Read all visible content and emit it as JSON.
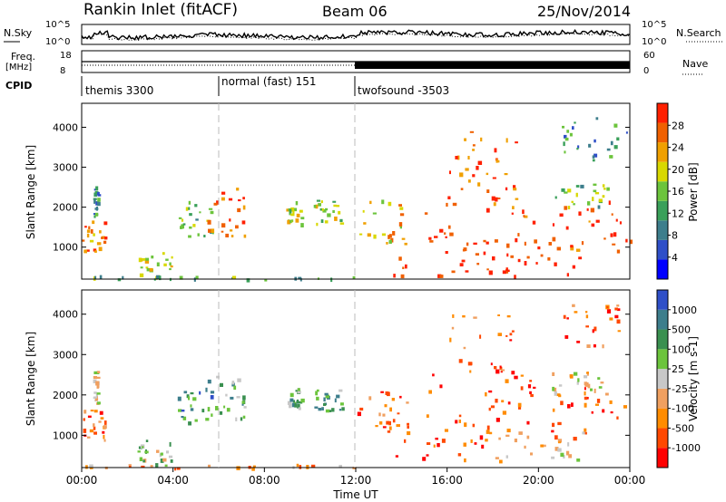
{
  "header": {
    "station": "Rankin Inlet (fitACF)",
    "beam": "Beam 06",
    "date": "25/Nov/2014"
  },
  "top_panels": {
    "nsky_label": "N.Sky",
    "nsky_ticks": [
      "10^5",
      "10^0"
    ],
    "nsearch_label": "N.Search",
    "nsearch_ticks": [
      "10^5",
      "10^0"
    ],
    "freq_label": "Freq.",
    "freq_unit": "[MHz]",
    "freq_ticks": [
      "18",
      "8"
    ],
    "nave_label": "Nave",
    "nave_ticks": [
      "60",
      "0"
    ],
    "cpid_label": "CPID",
    "cpid_segments": [
      {
        "label": "themis 3300",
        "start_h": 0,
        "end_h": 6
      },
      {
        "label": "normal (fast) 151",
        "start_h": 6,
        "end_h": 12
      },
      {
        "label": "twofsound -3503",
        "start_h": 12,
        "end_h": 24
      }
    ]
  },
  "chart_data": [
    {
      "type": "heatmap",
      "name": "power",
      "ylabel": "Slant Range [km]",
      "yticks": [
        1000,
        2000,
        3000,
        4000
      ],
      "ylim": [
        200,
        4600
      ],
      "xlim": [
        0,
        24
      ],
      "colorbar": {
        "label": "Power [dB]",
        "ticks": [
          "28",
          "24",
          "20",
          "16",
          "12",
          "8",
          "4"
        ],
        "colors": [
          "#0000ff",
          "#2f4fc8",
          "#3d7e8c",
          "#3aa05a",
          "#6cc43c",
          "#d8d800",
          "#f0a000",
          "#f06000",
          "#ff2000"
        ]
      },
      "regions": [
        {
          "x0": 0.0,
          "x1": 1.0,
          "y0": 900,
          "y1": 1700,
          "level": 0.8
        },
        {
          "x0": 0.5,
          "x1": 0.7,
          "y0": 1800,
          "y1": 2600,
          "level": 0.3
        },
        {
          "x0": 2.4,
          "x1": 4.0,
          "y0": 250,
          "y1": 900,
          "level": 0.6
        },
        {
          "x0": 4.2,
          "x1": 5.8,
          "y0": 1300,
          "y1": 2200,
          "level": 0.5
        },
        {
          "x0": 5.5,
          "x1": 7.1,
          "y0": 1300,
          "y1": 2500,
          "level": 0.85
        },
        {
          "x0": 8.9,
          "x1": 9.6,
          "y0": 1600,
          "y1": 2200,
          "level": 0.6
        },
        {
          "x0": 10.1,
          "x1": 11.4,
          "y0": 1600,
          "y1": 2200,
          "level": 0.55
        },
        {
          "x0": 12.0,
          "x1": 14.2,
          "y0": 1100,
          "y1": 2200,
          "level": 0.7
        },
        {
          "x0": 13.5,
          "x1": 18.0,
          "y0": 300,
          "y1": 1400,
          "level": 0.95
        },
        {
          "x0": 15.0,
          "x1": 20.0,
          "y0": 1200,
          "y1": 2600,
          "level": 0.9
        },
        {
          "x0": 16.0,
          "x1": 19.0,
          "y0": 2600,
          "y1": 4000,
          "level": 0.85
        },
        {
          "x0": 18.0,
          "x1": 22.0,
          "y0": 300,
          "y1": 1200,
          "level": 0.95
        },
        {
          "x0": 20.5,
          "x1": 24.0,
          "y0": 900,
          "y1": 2200,
          "level": 0.9
        },
        {
          "x0": 20.5,
          "x1": 23.0,
          "y0": 2000,
          "y1": 2600,
          "level": 0.5
        },
        {
          "x0": 21.0,
          "x1": 24.0,
          "y0": 3200,
          "y1": 4300,
          "level": 0.35
        },
        {
          "x0": 0.0,
          "x1": 12.0,
          "y0": 200,
          "y1": 300,
          "level": 0.4
        }
      ]
    },
    {
      "type": "heatmap",
      "name": "velocity",
      "ylabel": "Slant Range [km]",
      "yticks": [
        1000,
        2000,
        3000,
        4000
      ],
      "ylim": [
        200,
        4600
      ],
      "xlim": [
        0,
        24
      ],
      "colorbar": {
        "label": "Velocity [m s-1]",
        "ticks": [
          "1000",
          "500",
          "100",
          "25",
          "-25",
          "-100",
          "-500",
          "-1000"
        ],
        "colors": [
          "#ff0000",
          "#ff4800",
          "#ff8c00",
          "#f0a060",
          "#c8c8c8",
          "#6cc43c",
          "#3a9050",
          "#3d7e8c",
          "#2f4fc8"
        ]
      },
      "regions": [
        {
          "x0": 0.0,
          "x1": 1.0,
          "y0": 900,
          "y1": 1700,
          "level": 0.25
        },
        {
          "x0": 0.5,
          "x1": 0.7,
          "y0": 1800,
          "y1": 2600,
          "level": 0.5
        },
        {
          "x0": 2.4,
          "x1": 4.0,
          "y0": 250,
          "y1": 900,
          "level": 0.6
        },
        {
          "x0": 4.2,
          "x1": 5.8,
          "y0": 1300,
          "y1": 2200,
          "level": 0.75
        },
        {
          "x0": 5.5,
          "x1": 7.1,
          "y0": 1300,
          "y1": 2500,
          "level": 0.65
        },
        {
          "x0": 8.9,
          "x1": 9.6,
          "y0": 1600,
          "y1": 2200,
          "level": 0.7
        },
        {
          "x0": 10.1,
          "x1": 11.4,
          "y0": 1600,
          "y1": 2200,
          "level": 0.7
        },
        {
          "x0": 12.0,
          "x1": 14.2,
          "y0": 1100,
          "y1": 2200,
          "level": 0.2
        },
        {
          "x0": 13.5,
          "x1": 18.0,
          "y0": 300,
          "y1": 1400,
          "level": 0.15
        },
        {
          "x0": 15.0,
          "x1": 20.0,
          "y0": 1200,
          "y1": 2600,
          "level": 0.15
        },
        {
          "x0": 16.0,
          "x1": 19.0,
          "y0": 2600,
          "y1": 4000,
          "level": 0.2
        },
        {
          "x0": 18.0,
          "x1": 22.0,
          "y0": 300,
          "y1": 1200,
          "level": 0.45
        },
        {
          "x0": 20.5,
          "x1": 24.0,
          "y0": 900,
          "y1": 2200,
          "level": 0.15
        },
        {
          "x0": 20.5,
          "x1": 23.0,
          "y0": 2000,
          "y1": 2600,
          "level": 0.45
        },
        {
          "x0": 21.0,
          "x1": 24.0,
          "y0": 3200,
          "y1": 4300,
          "level": 0.2
        },
        {
          "x0": 0.0,
          "x1": 12.0,
          "y0": 200,
          "y1": 300,
          "level": 0.3
        }
      ]
    }
  ],
  "x_axis": {
    "ticks": [
      "00:00",
      "04:00",
      "08:00",
      "12:00",
      "16:00",
      "20:00",
      "00:00"
    ],
    "label": "Time UT"
  }
}
